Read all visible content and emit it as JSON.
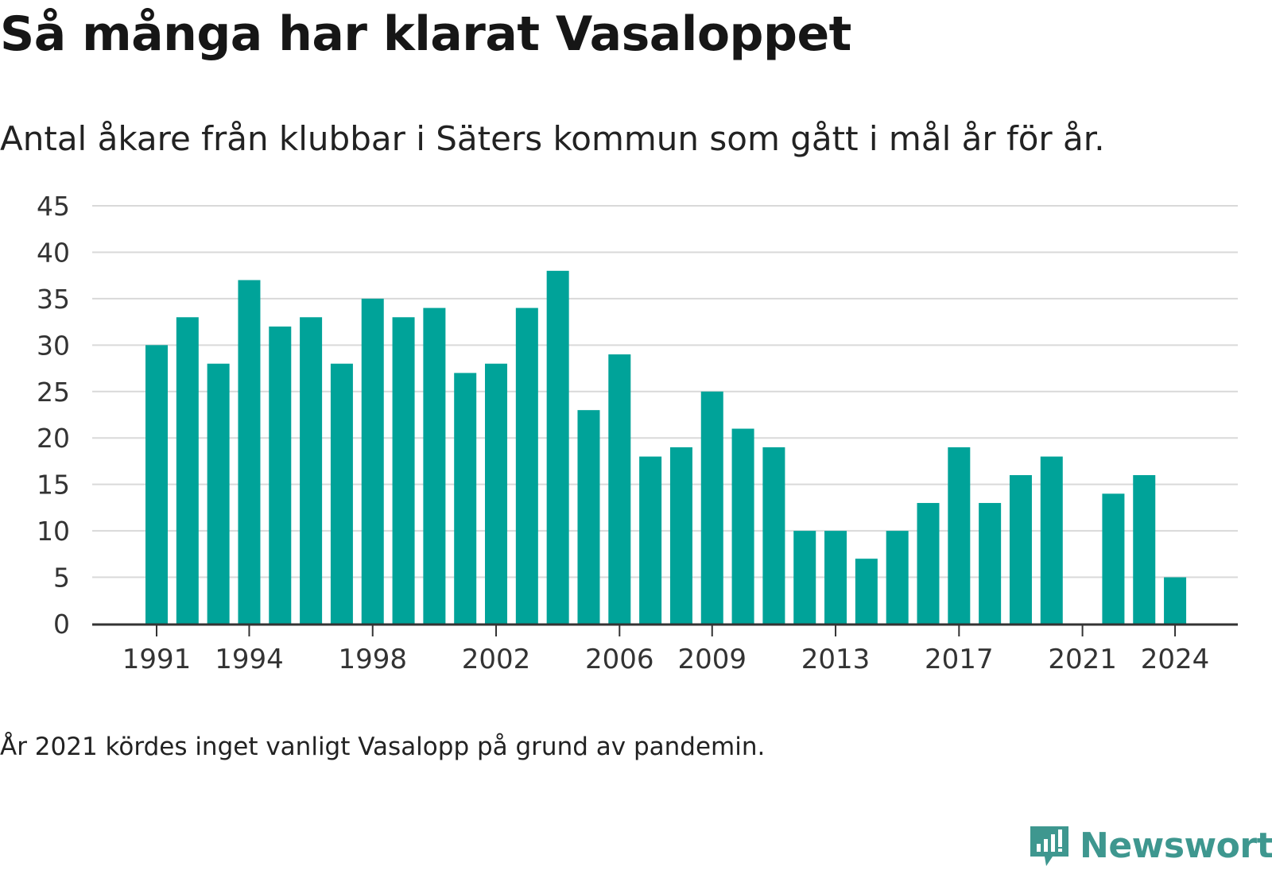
{
  "header": {
    "title": "Så många har klarat Vasaloppet",
    "subtitle": "Antal åkare från klubbar i Säters kommun som gått i mål år för år."
  },
  "footer": {
    "note": "År 2021 kördes inget vanligt Vasalopp på grund av pandemin.",
    "brand": "Newsworthy",
    "brand_icon": "bar-chart-speech-bubble-icon",
    "brand_color": "#3e978f"
  },
  "colors": {
    "bar": "#00a399",
    "grid": "#d9d9d9",
    "axis": "#333333"
  },
  "chart_data": {
    "type": "bar",
    "title": "",
    "xlabel": "",
    "ylabel": "",
    "x": [
      1991,
      1992,
      1993,
      1994,
      1995,
      1996,
      1997,
      1998,
      1999,
      2000,
      2001,
      2002,
      2003,
      2004,
      2005,
      2006,
      2007,
      2008,
      2009,
      2010,
      2011,
      2012,
      2013,
      2014,
      2015,
      2016,
      2017,
      2018,
      2019,
      2020,
      2021,
      2022,
      2023,
      2024
    ],
    "values": [
      30,
      33,
      28,
      37,
      32,
      33,
      28,
      35,
      33,
      34,
      27,
      28,
      34,
      38,
      23,
      29,
      18,
      19,
      25,
      21,
      19,
      10,
      10,
      7,
      10,
      13,
      19,
      13,
      16,
      18,
      null,
      14,
      16,
      5
    ],
    "xticks": [
      1991,
      1994,
      1998,
      2002,
      2006,
      2009,
      2013,
      2017,
      2021,
      2024
    ],
    "yticks": [
      0,
      5,
      10,
      15,
      20,
      25,
      30,
      35,
      40,
      45
    ],
    "ylim": [
      0,
      45
    ],
    "grid": true,
    "legend": "none"
  }
}
